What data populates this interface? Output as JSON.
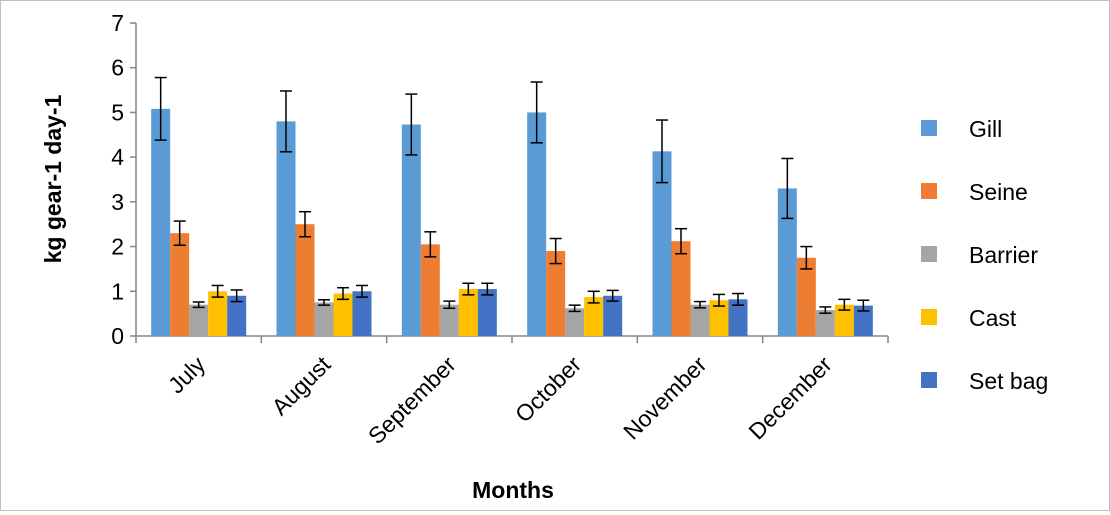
{
  "chart_data": {
    "type": "bar",
    "xlabel": "Months",
    "ylabel": "kg gear-1 day-1",
    "ylim": [
      0,
      7
    ],
    "yticks": [
      0,
      1,
      2,
      3,
      4,
      5,
      6,
      7
    ],
    "grid": false,
    "legend_position": "right",
    "categories": [
      "July",
      "August",
      "September",
      "October",
      "November",
      "December"
    ],
    "series": [
      {
        "name": "Gill",
        "color": "#5b9bd5",
        "values": [
          5.08,
          4.8,
          4.73,
          5.0,
          4.13,
          3.3
        ],
        "errors": [
          0.7,
          0.68,
          0.68,
          0.68,
          0.7,
          0.67
        ]
      },
      {
        "name": "Seine",
        "color": "#ed7d31",
        "values": [
          2.3,
          2.5,
          2.05,
          1.9,
          2.12,
          1.75
        ],
        "errors": [
          0.27,
          0.28,
          0.28,
          0.28,
          0.28,
          0.25
        ]
      },
      {
        "name": "Barrier",
        "color": "#a5a5a5",
        "values": [
          0.7,
          0.75,
          0.7,
          0.62,
          0.7,
          0.58
        ],
        "errors": [
          0.06,
          0.06,
          0.08,
          0.07,
          0.07,
          0.07
        ]
      },
      {
        "name": "Cast",
        "color": "#ffc000",
        "values": [
          1.0,
          0.95,
          1.05,
          0.87,
          0.8,
          0.7
        ],
        "errors": [
          0.13,
          0.13,
          0.13,
          0.13,
          0.13,
          0.12
        ]
      },
      {
        "name": "Set bag",
        "color": "#4472c4",
        "values": [
          0.9,
          1.0,
          1.05,
          0.9,
          0.82,
          0.68
        ],
        "errors": [
          0.13,
          0.13,
          0.13,
          0.12,
          0.13,
          0.12
        ]
      }
    ]
  }
}
